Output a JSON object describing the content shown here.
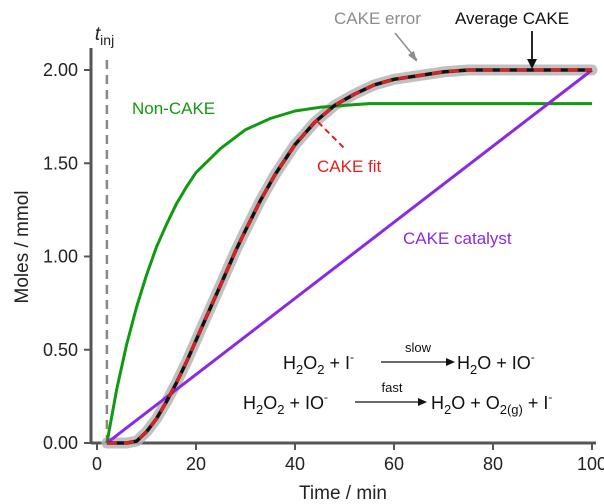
{
  "chart_data": {
    "type": "line",
    "xlabel": "Time / min",
    "ylabel": "Moles / mmol",
    "xlim": [
      0,
      100
    ],
    "ylim": [
      0,
      2.0
    ],
    "x_ticks": [
      "0",
      "20",
      "40",
      "60",
      "80",
      "100"
    ],
    "y_ticks": [
      "0.00",
      "0.50",
      "1.00",
      "1.50",
      "2.00"
    ],
    "injection_marker": {
      "x": 2,
      "label": "t",
      "subscript": "inj"
    },
    "series": [
      {
        "name": "Non-CAKE",
        "color": "#119911",
        "x": [
          2,
          4,
          6,
          8,
          10,
          12,
          14,
          16,
          18,
          20,
          25,
          30,
          35,
          40,
          45,
          50,
          55,
          60,
          70,
          80,
          90,
          100
        ],
        "y": [
          0.0,
          0.29,
          0.53,
          0.73,
          0.9,
          1.05,
          1.17,
          1.28,
          1.37,
          1.45,
          1.58,
          1.68,
          1.74,
          1.78,
          1.8,
          1.81,
          1.82,
          1.82,
          1.82,
          1.82,
          1.82,
          1.82
        ]
      },
      {
        "name": "CAKE catalyst",
        "color": "#8a2be2",
        "x": [
          2,
          100
        ],
        "y": [
          0.0,
          2.0
        ]
      },
      {
        "name": "Average CAKE",
        "color": "#111111",
        "x": [
          2,
          6,
          8,
          10,
          12,
          14,
          16,
          18,
          20,
          22,
          25,
          28,
          30,
          33,
          36,
          40,
          44,
          48,
          52,
          56,
          60,
          65,
          70,
          75,
          80,
          90,
          100
        ],
        "y": [
          0.0,
          0.0,
          0.01,
          0.06,
          0.13,
          0.22,
          0.32,
          0.43,
          0.55,
          0.67,
          0.85,
          1.03,
          1.14,
          1.3,
          1.44,
          1.6,
          1.72,
          1.81,
          1.87,
          1.92,
          1.95,
          1.97,
          1.99,
          2.0,
          2.0,
          2.0,
          2.0
        ]
      },
      {
        "name": "CAKE fit",
        "color": "#e02020",
        "dashed": true,
        "x": [
          2,
          6,
          8,
          10,
          12,
          14,
          16,
          18,
          20,
          22,
          25,
          28,
          30,
          33,
          36,
          40,
          44,
          48,
          52,
          56,
          60,
          65,
          70,
          75,
          80,
          90,
          100
        ],
        "y": [
          0.0,
          0.0,
          0.01,
          0.06,
          0.13,
          0.22,
          0.32,
          0.43,
          0.55,
          0.67,
          0.85,
          1.03,
          1.14,
          1.3,
          1.44,
          1.6,
          1.72,
          1.81,
          1.87,
          1.92,
          1.95,
          1.97,
          1.99,
          2.0,
          2.0,
          2.0,
          2.0
        ]
      }
    ],
    "error_band": {
      "name": "CAKE error",
      "color": "#b5b5b5"
    },
    "annotations": [
      {
        "text": "CAKE error",
        "color": "#8c8c8c"
      },
      {
        "text": "Average CAKE",
        "color": "#111111"
      },
      {
        "text": "Non-CAKE",
        "color": "#119911"
      },
      {
        "text": "CAKE fit",
        "color": "#e02020"
      },
      {
        "text": "CAKE catalyst",
        "color": "#8a2be2"
      }
    ],
    "equations": {
      "line1": {
        "lhs_a": "H",
        "lhs_a_sub": "2",
        "lhs_b": "O",
        "lhs_b_sub": "2",
        "plus1": " + I",
        "sup1": "-",
        "arrow_label": "slow",
        "rhs": "H",
        "rhs_sub": "2",
        "rhs2": "O + IO",
        "rhs_sup": "-"
      },
      "line2": {
        "lhs_a": "H",
        "lhs_a_sub": "2",
        "lhs_b": "O",
        "lhs_b_sub": "2",
        "plus1": " + IO",
        "sup1": "-",
        "arrow_label": "fast",
        "rhs": "H",
        "rhs_sub": "2",
        "rhs2": "O + O",
        "rhs2_sub": "2(g)",
        "rhs3": " + I",
        "rhs_sup": "-"
      }
    }
  }
}
